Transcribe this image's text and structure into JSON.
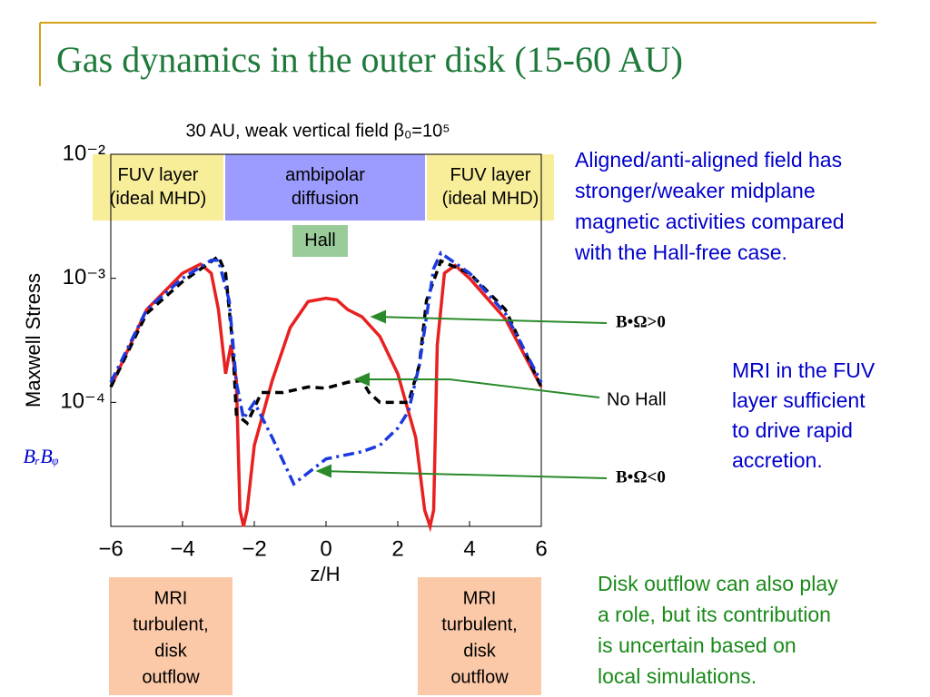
{
  "slide_title": "Gas dynamics in the outer disk (15-60 AU)",
  "chart_data": {
    "type": "line",
    "title": "30 AU, weak vertical field β₀=10⁵",
    "x_label": "z/H",
    "y_label": "Maxwell Stress",
    "side_label": "BᵣBᵩ",
    "y_log": true,
    "xlim": [
      -6,
      6
    ],
    "ylim": [
      1e-05,
      0.01
    ],
    "xticks": [
      {
        "value": -6,
        "label": "−6"
      },
      {
        "value": -4,
        "label": "−4"
      },
      {
        "value": -2,
        "label": "−2"
      },
      0,
      2,
      4,
      6
    ],
    "yticks": [
      {
        "value": 0.0001,
        "label": "10⁻⁴"
      },
      {
        "value": 0.001,
        "label": "10⁻³"
      },
      {
        "value": 0.01,
        "label": "10⁻²"
      }
    ],
    "series": [
      {
        "name": "B•Ω>0",
        "color": "#e82020",
        "style": "solid",
        "x": [
          -6,
          -5,
          -4,
          -3.5,
          -3.2,
          -3,
          -2.8,
          -2.65,
          -2.5,
          -2.4,
          -2.3,
          -2.2,
          -2,
          -1.5,
          -1,
          -0.5,
          0,
          0.3,
          0.6,
          1,
          1.5,
          2,
          2.5,
          2.75,
          2.9,
          3,
          3.1,
          3.3,
          3.6,
          4,
          5,
          6
        ],
        "values": [
          0.000133,
          0.00056,
          0.0011,
          0.0013,
          0.0011,
          0.00056,
          0.00017,
          0.00029,
          0.00015,
          1.35e-05,
          1e-05,
          1.35e-05,
          4.5e-05,
          0.00015,
          0.0004,
          0.00065,
          0.00069,
          0.00067,
          0.00056,
          0.00049,
          0.00034,
          0.00017,
          5.2e-05,
          1.35e-05,
          1e-05,
          1.35e-05,
          0.00029,
          0.0011,
          0.00127,
          0.001,
          0.00047,
          0.000133
        ]
      },
      {
        "name": "No Hall",
        "color": "#000000",
        "style": "dashed",
        "x": [
          -6,
          -5,
          -4,
          -3,
          -2.8,
          -2.6,
          -2.5,
          -2.2,
          -1.8,
          -1.2,
          -0.5,
          0,
          0.6,
          1,
          1.2,
          1.5,
          2,
          2.3,
          2.6,
          2.8,
          3.2,
          4,
          5,
          6
        ],
        "values": [
          0.000133,
          0.00052,
          0.00094,
          0.0015,
          0.0011,
          0.00029,
          8e-05,
          6.8e-05,
          0.00012,
          0.00012,
          0.000133,
          0.00013,
          0.000145,
          0.00015,
          0.00012,
          0.0001,
          0.0001,
          0.0001,
          0.0002,
          0.00066,
          0.00138,
          0.0011,
          0.00056,
          0.000133
        ]
      },
      {
        "name": "B•Ω<0",
        "color": "#1a3ae0",
        "style": "dashdot",
        "x": [
          -6,
          -5,
          -4,
          -3.2,
          -3,
          -2.7,
          -2.5,
          -2.3,
          -2,
          -1.5,
          -0.9,
          -0.5,
          0,
          1,
          1.5,
          2,
          2.3,
          2.6,
          3,
          3.2,
          4,
          5,
          6
        ],
        "values": [
          0.000145,
          0.00056,
          0.001,
          0.0014,
          0.0014,
          0.00066,
          0.000145,
          7.4e-05,
          0.0001,
          5.2e-05,
          2.2e-05,
          2.7e-05,
          3.5e-05,
          4e-05,
          4.5e-05,
          6.2e-05,
          8.5e-05,
          0.0002,
          0.0012,
          0.0016,
          0.0011,
          0.00052,
          0.000145
        ]
      }
    ],
    "regions": [
      {
        "lines": [
          "FUV layer",
          "(ideal MHD)"
        ],
        "color": "#f8ee9a"
      },
      {
        "lines": [
          "ambipolar",
          "diffusion"
        ],
        "color": "#9c9cff"
      },
      {
        "lines": [
          "FUV layer",
          "(ideal MHD)"
        ],
        "color": "#f8ee9a"
      },
      {
        "lines": [
          "Hall"
        ],
        "color": "#99cc99"
      }
    ]
  },
  "boxes": [
    {
      "lines": [
        "MRI",
        "turbulent,",
        "disk",
        "outflow"
      ]
    },
    {
      "lines": [
        "MRI",
        "turbulent,",
        "disk",
        "outflow"
      ]
    }
  ],
  "notes": [
    {
      "lines": [
        "Aligned/anti-aligned field has",
        "stronger/weaker midplane",
        "magnetic activities compared",
        "with the Hall-free case."
      ]
    },
    {
      "lines": [
        "MRI in the FUV",
        "layer sufficient",
        "to drive rapid",
        "accretion."
      ]
    },
    {
      "lines": [
        "Disk outflow can also play",
        "a role, but its contribution",
        "is uncertain based on",
        "local simulations."
      ]
    }
  ]
}
